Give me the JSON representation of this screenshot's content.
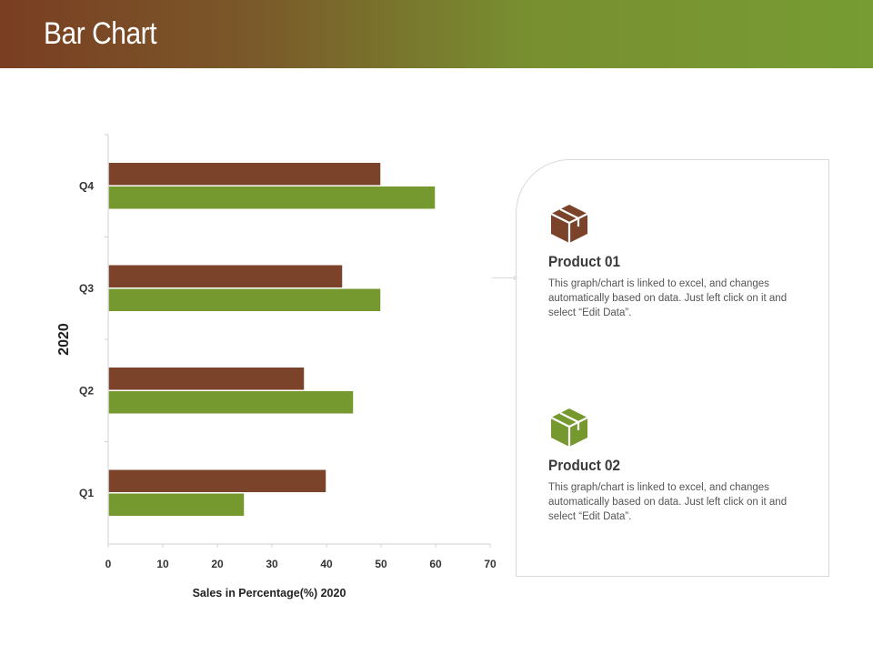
{
  "header": {
    "title": "Bar Chart"
  },
  "colors": {
    "brown": "#7b4329",
    "green": "#76992f",
    "header_start": "#7a3e22",
    "header_end": "#779c33"
  },
  "chart_data": {
    "type": "bar",
    "orientation": "horizontal",
    "categories": [
      "Q1",
      "Q2",
      "Q3",
      "Q4"
    ],
    "series": [
      {
        "values": [
          40,
          36,
          43,
          50
        ],
        "color": "#7b4329"
      },
      {
        "values": [
          25,
          45,
          50,
          60
        ],
        "color": "#76992f"
      }
    ],
    "xticks": [
      "0",
      "10",
      "20",
      "30",
      "40",
      "50",
      "60",
      "70"
    ],
    "xlim": [
      0,
      70
    ],
    "xlabel": "Sales in Percentage(%) 2020",
    "ylabel": "2020",
    "grid": false
  },
  "products": [
    {
      "title": "Product 01",
      "description": "This graph/chart is linked to excel, and changes automatically based on data. Just left click on it and select “Edit Data”.",
      "icon": "box-icon",
      "color": "#7b4329"
    },
    {
      "title": "Product 02",
      "description": "This graph/chart is linked to excel, and changes automatically based on data. Just left click on it and select “Edit Data”.",
      "icon": "box-icon",
      "color": "#76992f"
    }
  ]
}
